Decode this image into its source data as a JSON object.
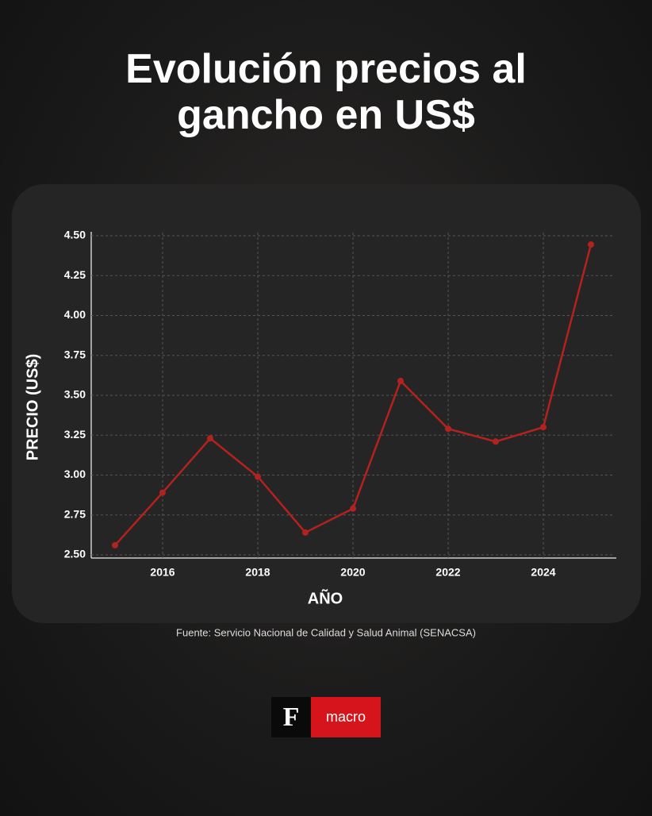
{
  "chart_data": {
    "type": "line",
    "title": "Evolución precios al gancho en US$",
    "x_label": "AÑO",
    "y_label": "PRECIO (US$)",
    "source": "Fuente: Servicio Nacional de Calidad y Salud Animal (SENACSA)",
    "x": [
      2015,
      2016,
      2017,
      2018,
      2019,
      2020,
      2021,
      2022,
      2023,
      2024,
      2025
    ],
    "values": [
      2.56,
      2.89,
      3.23,
      2.99,
      2.64,
      2.79,
      3.59,
      3.29,
      3.21,
      3.3,
      4.445
    ],
    "color": "#b3221e",
    "xlim": [
      2014.5,
      2025.5
    ],
    "xticks": [
      2016,
      2018,
      2020,
      2022,
      2024
    ],
    "ylim": [
      2.48,
      4.52
    ],
    "yticks": [
      {
        "value": 2.5,
        "label": "2.50"
      },
      {
        "value": 2.75,
        "label": "2.75"
      },
      {
        "value": 3,
        "label": "3.00"
      },
      {
        "value": 3.25,
        "label": "3.25"
      },
      {
        "value": 3.5,
        "label": "3.50"
      },
      {
        "value": 3.75,
        "label": "3.75"
      },
      {
        "value": 4,
        "label": "4.00"
      },
      {
        "value": 4.25,
        "label": "4.25"
      },
      {
        "value": 4.5,
        "label": "4.50"
      }
    ],
    "grid": true
  },
  "logo": {
    "letter": "F",
    "text": "macro"
  }
}
